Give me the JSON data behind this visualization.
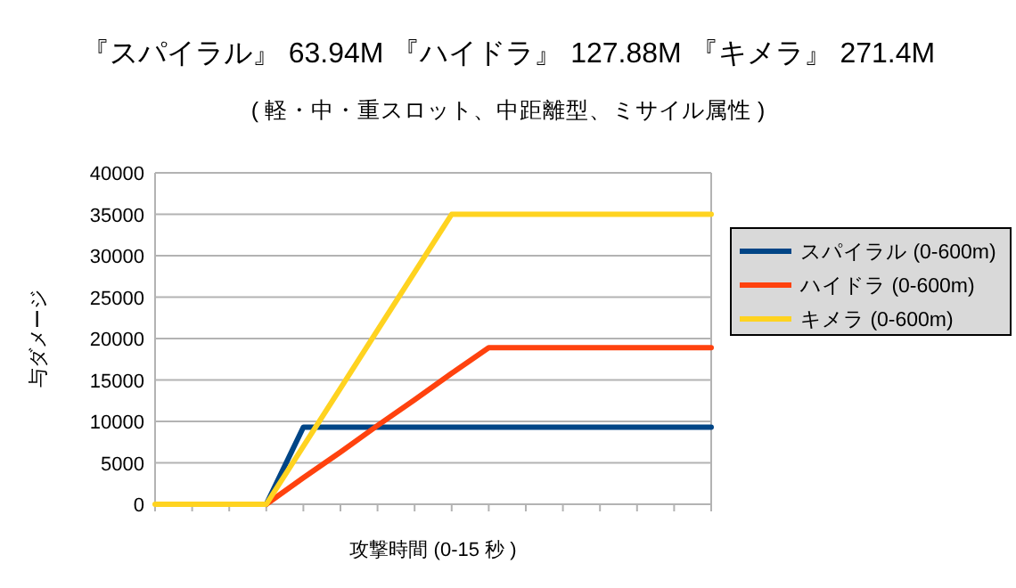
{
  "chart_data": {
    "type": "line",
    "title": "『スパイラル』 63.94M 『ハイドラ』 127.88M 『キメラ』 271.4M",
    "subtitle": "( 軽・中・重スロット、中距離型、ミサイル属性 )",
    "xlabel": "攻撃時間 (0-15 秒 )",
    "ylabel": "与ダメージ",
    "categories": [
      null,
      null,
      null,
      null,
      null,
      null,
      null,
      null,
      null,
      null,
      null,
      null,
      null,
      null,
      null,
      null
    ],
    "series": [
      {
        "name": "スパイラル (0-600m)",
        "color": "#004586",
        "values": [
          null,
          null,
          null,
          0,
          9300,
          9300,
          9300,
          9300,
          9300,
          9300,
          9300,
          9300,
          9300,
          9300,
          9300,
          9300
        ]
      },
      {
        "name": "ハイドラ (0-600m)",
        "color": "#ff420e",
        "values": [
          null,
          null,
          null,
          0,
          3200,
          6300,
          9500,
          12600,
          15800,
          18900,
          18900,
          18900,
          18900,
          18900,
          18900,
          18900
        ]
      },
      {
        "name": "キメラ (0-600m)",
        "color": "#ffd320",
        "values": [
          0,
          0,
          0,
          0,
          7000,
          14000,
          21000,
          28000,
          35000,
          35000,
          35000,
          35000,
          35000,
          35000,
          35000,
          35000
        ]
      }
    ],
    "ylim": [
      0,
      40000
    ],
    "yticks": [
      0,
      5000,
      10000,
      15000,
      20000,
      25000,
      30000,
      35000,
      40000
    ],
    "grid": "y",
    "legend": "right",
    "tick_labels": "y",
    "line_style": "solid"
  }
}
